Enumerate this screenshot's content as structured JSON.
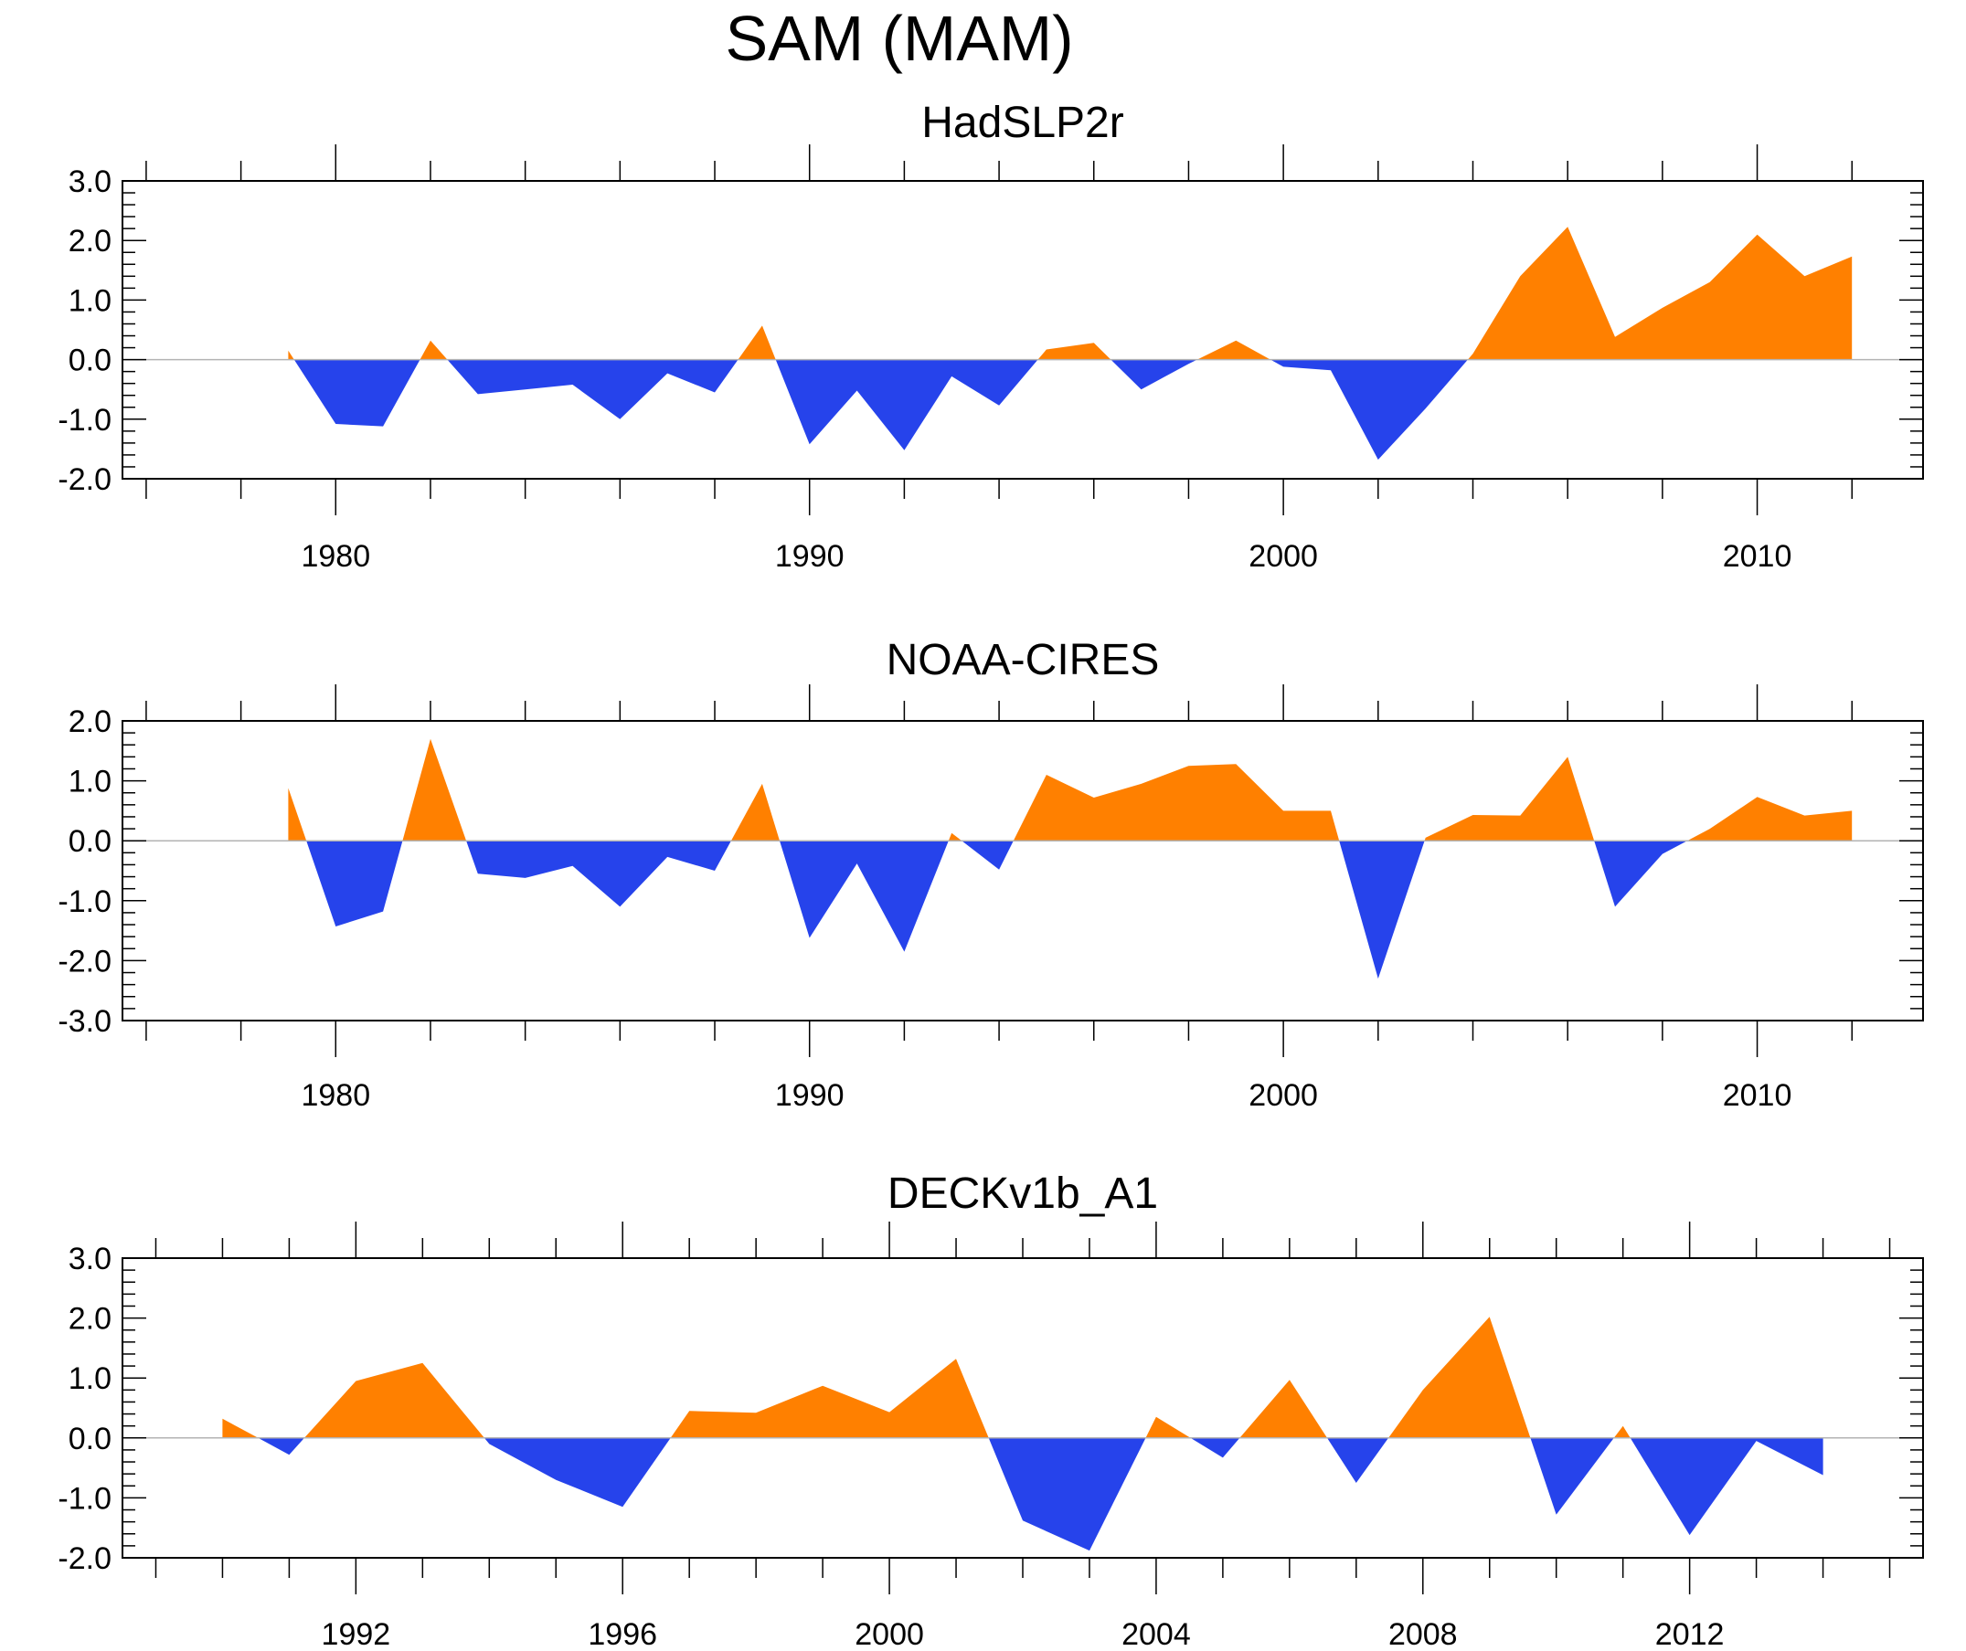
{
  "title": "SAM (MAM)",
  "colors": {
    "positive": "#ff8000",
    "negative": "#2643eb",
    "zero_line": "#b3b3b3",
    "axis": "#000000"
  },
  "chart_data": [
    {
      "type": "area",
      "title": "HadSLP2r",
      "xlim": [
        1975.5,
        2013.5
      ],
      "ylim": [
        -2.0,
        3.0
      ],
      "yticks": [
        -2.0,
        -1.0,
        0.0,
        1.0,
        2.0,
        3.0
      ],
      "ytick_labels": [
        "-2.0",
        "-1.0",
        "0.0",
        "1.0",
        "2.0",
        "3.0"
      ],
      "xtick_major": [
        1980,
        1990,
        2000,
        2010
      ],
      "xtick_labels": [
        "1980",
        "1990",
        "2000",
        "2010"
      ],
      "xtick_minor_step": 2,
      "x": [
        1979,
        1980,
        1981,
        1982,
        1983,
        1984,
        1985,
        1986,
        1987,
        1988,
        1989,
        1990,
        1991,
        1992,
        1993,
        1994,
        1995,
        1996,
        1997,
        1998,
        1999,
        2000,
        2001,
        2002,
        2003,
        2004,
        2005,
        2006,
        2007,
        2008,
        2009,
        2010,
        2011,
        2012
      ],
      "values": [
        0.15,
        -1.08,
        -1.12,
        0.32,
        -0.58,
        -0.5,
        -0.42,
        -1.0,
        -0.23,
        -0.55,
        0.57,
        -1.42,
        -0.52,
        -1.52,
        -0.28,
        -0.77,
        0.17,
        0.28,
        -0.5,
        -0.07,
        0.32,
        -0.12,
        -0.18,
        -1.68,
        -0.82,
        0.1,
        1.4,
        2.23,
        0.38,
        0.87,
        1.3,
        2.1,
        1.4,
        1.73
      ]
    },
    {
      "type": "area",
      "title": "NOAA-CIRES",
      "xlim": [
        1975.5,
        2013.5
      ],
      "ylim": [
        -3.0,
        2.0
      ],
      "yticks": [
        -3.0,
        -2.0,
        -1.0,
        0.0,
        1.0,
        2.0
      ],
      "ytick_labels": [
        "-3.0",
        "-2.0",
        "-1.0",
        "0.0",
        "1.0",
        "2.0"
      ],
      "xtick_major": [
        1980,
        1990,
        2000,
        2010
      ],
      "xtick_labels": [
        "1980",
        "1990",
        "2000",
        "2010"
      ],
      "xtick_minor_step": 2,
      "x": [
        1979,
        1980,
        1981,
        1982,
        1983,
        1984,
        1985,
        1986,
        1987,
        1988,
        1989,
        1990,
        1991,
        1992,
        1993,
        1994,
        1995,
        1996,
        1997,
        1998,
        1999,
        2000,
        2001,
        2002,
        2003,
        2004,
        2005,
        2006,
        2007,
        2008,
        2009,
        2010,
        2011,
        2012
      ],
      "values": [
        0.88,
        -1.43,
        -1.18,
        1.7,
        -0.55,
        -0.62,
        -0.42,
        -1.1,
        -0.27,
        -0.5,
        0.95,
        -1.62,
        -0.38,
        -1.85,
        0.13,
        -0.48,
        1.1,
        0.72,
        0.95,
        1.25,
        1.28,
        0.5,
        0.5,
        -2.3,
        0.05,
        0.43,
        0.42,
        1.4,
        -1.1,
        -0.22,
        0.2,
        0.73,
        0.42,
        0.5
      ]
    },
    {
      "type": "area",
      "title": "DECKv1b_A1",
      "xlim": [
        1988.5,
        2015.5
      ],
      "ylim": [
        -2.0,
        3.0
      ],
      "yticks": [
        -2.0,
        -1.0,
        0.0,
        1.0,
        2.0,
        3.0
      ],
      "ytick_labels": [
        "-2.0",
        "-1.0",
        "0.0",
        "1.0",
        "2.0",
        "3.0"
      ],
      "xtick_major": [
        1992,
        1996,
        2000,
        2004,
        2008,
        2012
      ],
      "xtick_labels": [
        "1992",
        "1996",
        "2000",
        "2004",
        "2008",
        "2012"
      ],
      "xtick_minor_step": 1,
      "x": [
        1990,
        1991,
        1992,
        1993,
        1994,
        1995,
        1996,
        1997,
        1998,
        1999,
        2000,
        2001,
        2002,
        2003,
        2004,
        2005,
        2006,
        2007,
        2008,
        2009,
        2010,
        2011,
        2012,
        2013,
        2014
      ],
      "values": [
        0.32,
        -0.28,
        0.95,
        1.25,
        -0.1,
        -0.7,
        -1.15,
        0.45,
        0.42,
        0.87,
        0.43,
        1.32,
        -1.38,
        -1.88,
        0.35,
        -0.33,
        0.97,
        -0.75,
        0.8,
        2.02,
        -1.28,
        0.2,
        -1.62,
        -0.05,
        -0.62
      ]
    }
  ]
}
